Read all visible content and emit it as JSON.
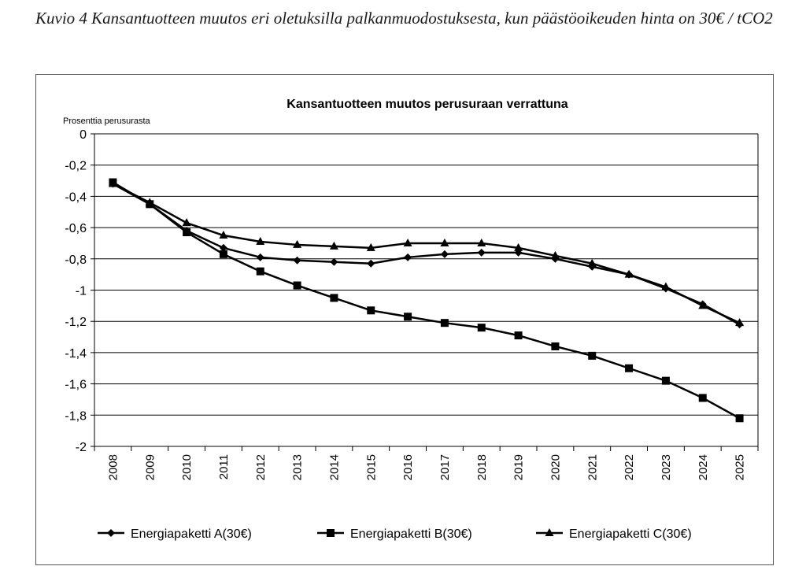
{
  "figure": {
    "caption": "Kuvio 4 Kansantuotteen muutos eri oletuksilla palkanmuodostuksesta, kun päästöoikeuden hinta on 30€ / tCO2"
  },
  "chart_data": {
    "type": "line",
    "title": "Kansantuotteen muutos perusuraan verrattuna",
    "ylabel": "Prosenttia perusurasta",
    "xlabel": "",
    "ylim": [
      -2,
      0
    ],
    "ytick_labels": [
      "0",
      "-0,2",
      "-0,4",
      "-0,6",
      "-0,8",
      "-1",
      "-1,2",
      "-1,4",
      "-1,6",
      "-1,8",
      "-2"
    ],
    "yticks": [
      0,
      -0.2,
      -0.4,
      -0.6,
      -0.8,
      -1,
      -1.2,
      -1.4,
      -1.6,
      -1.8,
      -2
    ],
    "grid": "horizontal",
    "legend_position": "bottom",
    "categories": [
      "2008",
      "2009",
      "2010",
      "2011",
      "2012",
      "2013",
      "2014",
      "2015",
      "2016",
      "2017",
      "2018",
      "2019",
      "2020",
      "2021",
      "2022",
      "2023",
      "2024",
      "2025"
    ],
    "series": [
      {
        "name": "Energiapaketti A(30€)",
        "marker": "diamond",
        "color": "#000000",
        "values": [
          -0.32,
          -0.45,
          -0.62,
          -0.73,
          -0.79,
          -0.81,
          -0.82,
          -0.83,
          -0.79,
          -0.77,
          -0.76,
          -0.76,
          -0.8,
          -0.85,
          -0.9,
          -0.99,
          -1.09,
          -1.22
        ]
      },
      {
        "name": "Energiapaketti B(30€)",
        "marker": "square",
        "color": "#000000",
        "values": [
          -0.31,
          -0.45,
          -0.63,
          -0.77,
          -0.88,
          -0.97,
          -1.05,
          -1.13,
          -1.17,
          -1.21,
          -1.24,
          -1.29,
          -1.36,
          -1.42,
          -1.5,
          -1.58,
          -1.69,
          -1.82
        ]
      },
      {
        "name": "Energiapaketti C(30€)",
        "marker": "triangle",
        "color": "#000000",
        "values": [
          -0.32,
          -0.44,
          -0.57,
          -0.65,
          -0.69,
          -0.71,
          -0.72,
          -0.73,
          -0.7,
          -0.7,
          -0.7,
          -0.73,
          -0.78,
          -0.83,
          -0.9,
          -0.98,
          -1.1,
          -1.21
        ]
      }
    ]
  }
}
